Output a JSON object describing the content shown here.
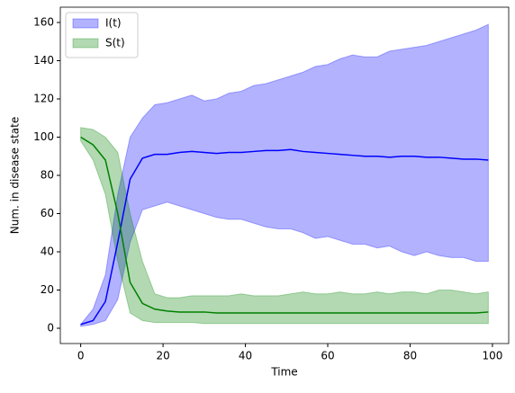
{
  "chart_data": {
    "type": "line-band",
    "x_label": "Time",
    "y_label": "Num. in disease state",
    "x": [
      0,
      3,
      6,
      9,
      12,
      15,
      18,
      21,
      24,
      27,
      30,
      33,
      36,
      39,
      42,
      45,
      48,
      51,
      54,
      57,
      60,
      63,
      66,
      69,
      72,
      75,
      78,
      81,
      84,
      87,
      90,
      93,
      96,
      99
    ],
    "series": [
      {
        "name": "I(t)",
        "color": "#0000ff",
        "band_alpha": 0.3,
        "values": [
          2,
          4,
          14,
          45,
          78,
          89,
          91,
          91,
          92,
          92.5,
          92,
          91.5,
          92,
          92,
          92.5,
          93,
          93,
          93.5,
          92.5,
          92,
          91.5,
          91,
          90.5,
          90,
          90,
          89.5,
          90,
          90,
          89.5,
          89.5,
          89,
          88.5,
          88.5,
          88
        ],
        "lower": [
          1,
          2,
          4,
          15,
          45,
          62,
          64,
          66,
          64,
          62,
          60,
          58,
          57,
          57,
          55,
          53,
          52,
          52,
          50,
          47,
          48,
          46,
          44,
          44,
          42,
          43,
          40,
          38,
          40,
          38,
          37,
          37,
          35,
          35
        ],
        "upper": [
          2,
          10,
          28,
          70,
          100,
          110,
          117,
          118,
          120,
          122,
          119,
          120,
          123,
          124,
          127,
          128,
          130,
          132,
          134,
          137,
          138,
          141,
          143,
          142,
          142,
          145,
          146,
          147,
          148,
          150,
          152,
          154,
          156,
          159
        ]
      },
      {
        "name": "S(t)",
        "color": "#008000",
        "band_alpha": 0.3,
        "values": [
          100,
          96,
          88,
          60,
          24,
          13,
          10,
          9,
          8.5,
          8.5,
          8.5,
          8,
          8,
          8,
          8,
          8,
          8,
          8,
          8,
          8,
          8,
          8,
          8,
          8,
          8,
          8,
          8,
          8,
          8,
          8,
          8,
          8,
          8,
          8.5
        ],
        "lower": [
          98,
          88,
          70,
          35,
          8,
          4,
          3,
          3,
          3,
          3,
          2.5,
          2.5,
          2.5,
          2.5,
          2.5,
          2.5,
          2.5,
          2.5,
          2.5,
          2.5,
          2.5,
          2.5,
          2.5,
          2.5,
          2.5,
          2.5,
          2.5,
          2.5,
          2.5,
          2.5,
          2.5,
          2.5,
          2.5,
          2.5
        ],
        "upper": [
          105,
          104,
          100,
          92,
          60,
          35,
          18,
          16,
          16,
          17,
          17,
          17,
          17,
          18,
          17,
          17,
          17,
          18,
          19,
          18,
          18,
          19,
          18,
          18,
          19,
          18,
          19,
          19,
          18,
          20,
          20,
          19,
          18,
          19
        ]
      }
    ],
    "xlim": [
      -4.95,
      103.95
    ],
    "xticks": [
      0,
      20,
      40,
      60,
      80,
      100
    ],
    "ylim": [
      -8,
      168
    ],
    "yticks": [
      0,
      20,
      40,
      60,
      80,
      100,
      120,
      140,
      160
    ],
    "legend": "upper left",
    "grid": false
  }
}
